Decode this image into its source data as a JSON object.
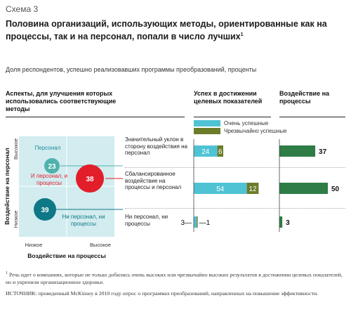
{
  "header": {
    "scheme_label": "Схема 3",
    "title": "Половина организаций, использующих методы, ориентированные как на процессы, так и на персонал, попали в число лучших",
    "title_footnote_mark": "1",
    "subtitle": "Доля респондентов, успешно реализовавших программы преобразований, проценты"
  },
  "columns": {
    "aspects": "Аспекты, для улучшения которых использовались соответствующие методы",
    "success": "Успех в достижении целевых показателей",
    "impact": "Воздействие на процессы"
  },
  "legend": {
    "very": "Очень успешные",
    "extremely": "Чрезвычайно успешные"
  },
  "matrix": {
    "y_axis": "Воздействие на персонал",
    "y_high": "Высокое",
    "y_low": "Низкое",
    "x_axis": "Воздействие на процессы",
    "x_low": "Низкое",
    "x_high": "Высокое",
    "quadrants": [
      {
        "label": "Персонал",
        "value": "23"
      },
      {
        "label": "И персонал, и процессы",
        "value": "38"
      },
      {
        "label": "Ни персонал, ни процессы",
        "value": "39"
      }
    ]
  },
  "rows": [
    {
      "label": "Значительный уклон в сторону воздействия на персонал"
    },
    {
      "label": "Сбалансированное воздействие на процессы и персонал"
    },
    {
      "label": "Ни персонал, ни процессы"
    }
  ],
  "colors": {
    "very": "#4fc3d4",
    "extremely": "#6b7c2a",
    "impact": "#2e7d46",
    "matrix_bg": "#d2ecef",
    "bubble_teal": "#4fb3ac",
    "bubble_red": "#e31e2b",
    "bubble_dark": "#0e7887"
  },
  "chart_data": [
    {
      "type": "bar",
      "stacked": true,
      "categories": [
        "Значительный уклон в сторону воздействия на персонал",
        "Сбалансированное воздействие на процессы и персонал",
        "Ни персонал, ни процессы"
      ],
      "series": [
        {
          "name": "Очень успешные",
          "values": [
            24,
            54,
            3
          ]
        },
        {
          "name": "Чрезвычайно успешные",
          "values": [
            6,
            12,
            1
          ]
        }
      ],
      "labels": [
        "24",
        "6",
        "54",
        "12",
        "3",
        "1"
      ]
    },
    {
      "type": "bar",
      "categories": [
        "Значительный уклон в сторону воздействия на персонал",
        "Сбалансированное воздействие на процессы и персонал",
        "Ни персонал, ни процессы"
      ],
      "values": [
        37,
        50,
        3
      ],
      "labels": [
        "37",
        "50",
        "3"
      ]
    }
  ],
  "footnotes": {
    "note_mark": "1",
    "note": "Речь идет о компаниях, которые не только добились очень высоких или чрезвычайно высоких результатов в достижении целевых показателей, но и укрепили организационное здоровье.",
    "source": "ИСТОЧНИК: проведенный McKinsey в 2010 году опрос о программах преобразований, направленных на повышение эффективности."
  }
}
